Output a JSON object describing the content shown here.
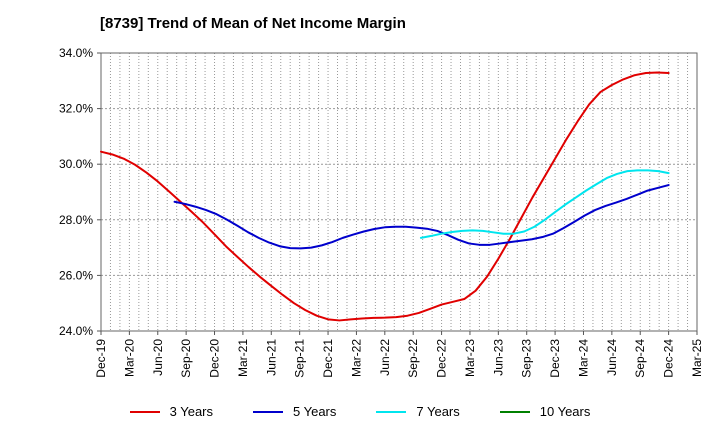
{
  "chart_data": {
    "type": "line",
    "title": "[8739]  Trend of Mean of Net Income Margin",
    "xlabel": "",
    "ylabel": "",
    "ylim": [
      24.0,
      34.0
    ],
    "y_ticks": [
      "24.0%",
      "26.0%",
      "28.0%",
      "30.0%",
      "32.0%",
      "34.0%"
    ],
    "x_ticks": [
      "Dec-19",
      "Mar-20",
      "Jun-20",
      "Sep-20",
      "Dec-20",
      "Mar-21",
      "Jun-21",
      "Sep-21",
      "Dec-21",
      "Mar-22",
      "Jun-22",
      "Sep-22",
      "Dec-22",
      "Mar-23",
      "Jun-23",
      "Sep-23",
      "Dec-23",
      "Mar-24",
      "Jun-24",
      "Sep-24",
      "Dec-24",
      "Mar-25"
    ],
    "grid": true,
    "legend_position": "bottom",
    "series": [
      {
        "name": "3 Years",
        "color": "#e00000",
        "values": [
          30.45,
          30.35,
          30.2,
          29.98,
          29.7,
          29.38,
          29.02,
          28.65,
          28.28,
          27.9,
          27.48,
          27.05,
          26.67,
          26.3,
          25.95,
          25.62,
          25.3,
          25.0,
          24.75,
          24.55,
          24.42,
          24.38,
          24.42,
          24.45,
          24.47,
          24.48,
          24.5,
          24.55,
          24.65,
          24.8,
          24.95,
          25.05,
          25.15,
          25.45,
          25.95,
          26.6,
          27.3,
          28.05,
          28.8,
          29.5,
          30.2,
          30.9,
          31.55,
          32.15,
          32.6,
          32.85,
          33.05,
          33.2,
          33.28,
          33.3,
          33.28
        ]
      },
      {
        "name": "5 Years",
        "color": "#0000cc",
        "values": [
          null,
          null,
          null,
          null,
          null,
          null,
          null,
          28.65,
          28.57,
          28.47,
          28.35,
          28.2,
          28.0,
          27.78,
          27.55,
          27.35,
          27.18,
          27.05,
          26.98,
          26.97,
          27.0,
          27.08,
          27.2,
          27.35,
          27.47,
          27.58,
          27.67,
          27.73,
          27.75,
          27.75,
          27.72,
          27.68,
          27.6,
          27.45,
          27.28,
          27.15,
          27.1,
          27.1,
          27.15,
          27.2,
          27.25,
          27.3,
          27.38,
          27.5,
          27.7,
          27.92,
          28.15,
          28.35,
          28.5,
          28.62,
          28.75,
          28.9,
          29.05,
          29.15,
          29.25
        ]
      },
      {
        "name": "7 Years",
        "color": "#00e5ee",
        "values": [
          null,
          null,
          null,
          null,
          null,
          null,
          null,
          null,
          null,
          null,
          null,
          null,
          null,
          null,
          null,
          null,
          null,
          null,
          null,
          null,
          null,
          null,
          null,
          null,
          null,
          null,
          null,
          null,
          null,
          null,
          null,
          27.35,
          27.42,
          27.5,
          27.56,
          27.6,
          27.62,
          27.6,
          27.55,
          27.5,
          27.5,
          27.58,
          27.75,
          28.0,
          28.28,
          28.55,
          28.8,
          29.05,
          29.28,
          29.5,
          29.65,
          29.75,
          29.78,
          29.78,
          29.75,
          29.68
        ]
      },
      {
        "name": "10 Years",
        "color": "#008000",
        "values": []
      }
    ]
  }
}
